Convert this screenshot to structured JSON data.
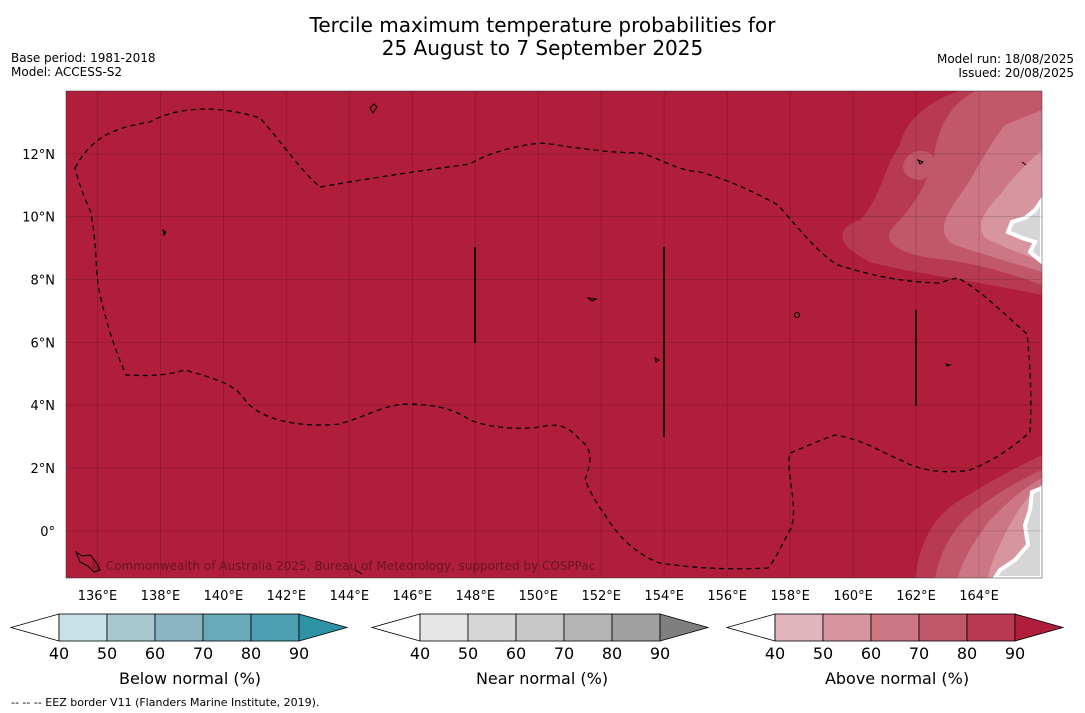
{
  "title": {
    "line1": "Tercile maximum temperature probabilities for",
    "line2": "25 August to 7 September 2025"
  },
  "meta_left": {
    "base_period": "Base period: 1981-2018",
    "model": "Model: ACCESS-S2"
  },
  "meta_right": {
    "model_run": "Model run: 18/08/2025",
    "issued": "Issued: 20/08/2025"
  },
  "map": {
    "lon_range": [
      135,
      166
    ],
    "lat_range": [
      -1.5,
      14
    ],
    "background_category": "above-normal 90",
    "lon_ticks": [
      "136°E",
      "138°E",
      "140°E",
      "142°E",
      "144°E",
      "146°E",
      "148°E",
      "150°E",
      "152°E",
      "154°E",
      "156°E",
      "158°E",
      "160°E",
      "162°E",
      "164°E"
    ],
    "lon_tick_values": [
      136,
      138,
      140,
      142,
      144,
      146,
      148,
      150,
      152,
      154,
      156,
      158,
      160,
      162,
      164
    ],
    "lat_ticks": [
      "12°N",
      "10°N",
      "8°N",
      "6°N",
      "4°N",
      "2°N",
      "0°"
    ],
    "lat_tick_values": [
      12,
      10,
      8,
      6,
      4,
      2,
      0
    ],
    "copyright": "© Commonwealth of Australia 2025, Bureau of Meteorology, supported by COSPPac"
  },
  "colorbars": [
    {
      "name": "below",
      "label": "Below normal (%)",
      "ticks": [
        "40",
        "50",
        "60",
        "70",
        "80",
        "90"
      ],
      "colors": [
        "#ffffff",
        "#c8e1e8",
        "#a8c7cf",
        "#8ab5c1",
        "#6aa9b8",
        "#4a9fb0",
        "#2f93a6"
      ]
    },
    {
      "name": "near",
      "label": "Near normal (%)",
      "ticks": [
        "40",
        "50",
        "60",
        "70",
        "80",
        "90"
      ],
      "colors": [
        "#ffffff",
        "#e6e6e6",
        "#d6d6d6",
        "#c8c8c8",
        "#b4b4b4",
        "#a0a0a0",
        "#7f7f7f"
      ]
    },
    {
      "name": "above",
      "label": "Above normal (%)",
      "ticks": [
        "40",
        "50",
        "60",
        "70",
        "80",
        "90"
      ],
      "colors": [
        "#ffffff",
        "#e0b5bd",
        "#d6959f",
        "#cc7783",
        "#c0586a",
        "#b73a52",
        "#b01e3b"
      ]
    }
  ],
  "footer": "--  --  -- EEZ border V11 (Flanders Marine Institute, 2019)."
}
